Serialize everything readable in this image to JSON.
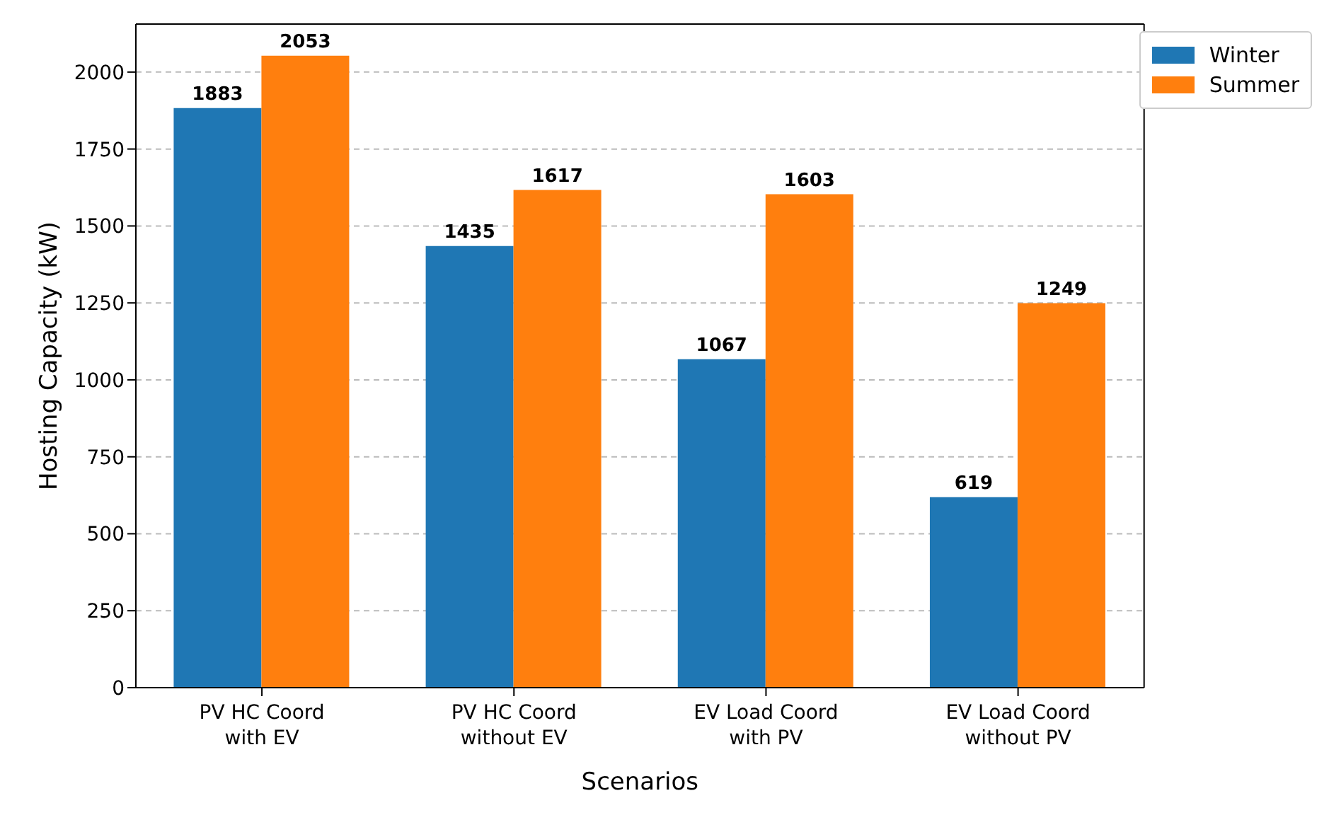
{
  "chart_data": {
    "type": "bar",
    "xlabel": "Scenarios",
    "ylabel": "Hosting Capacity (kW)",
    "categories": [
      "PV HC Coord\nwith EV",
      "PV HC Coord\nwithout EV",
      "EV Load Coord\nwith PV",
      "EV Load Coord\nwithout PV"
    ],
    "series": [
      {
        "name": "Winter",
        "color": "#1f77b4",
        "values": [
          1883,
          1435,
          1067,
          619
        ]
      },
      {
        "name": "Summer",
        "color": "#ff7f0e",
        "values": [
          2053,
          1617,
          1603,
          1249
        ]
      }
    ],
    "ylim": [
      0,
      2156
    ],
    "yticks": [
      0,
      250,
      500,
      750,
      1000,
      1250,
      1500,
      1750,
      2000
    ],
    "grid": "y",
    "legend": "top right",
    "data_labels": true
  }
}
